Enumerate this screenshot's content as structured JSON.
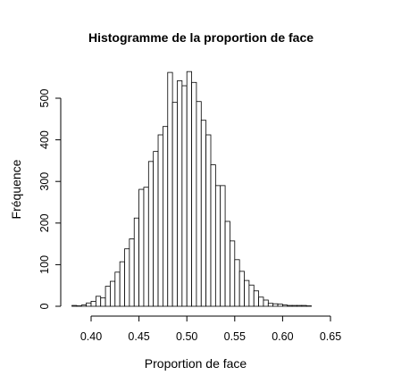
{
  "chart_data": {
    "type": "bar",
    "title": "Histogramme de la proportion de face",
    "xlabel": "Proportion de face",
    "ylabel": "Fréquence",
    "xlim": [
      0.38,
      0.67
    ],
    "ylim": [
      0,
      600
    ],
    "x_ticks": [
      0.4,
      0.45,
      0.5,
      0.55,
      0.6,
      0.65
    ],
    "x_tick_labels": [
      "0.40",
      "0.45",
      "0.50",
      "0.55",
      "0.60",
      "0.65"
    ],
    "y_ticks": [
      0,
      100,
      200,
      300,
      400,
      500
    ],
    "y_tick_labels": [
      "0",
      "100",
      "200",
      "300",
      "400",
      "500"
    ],
    "bin_width": 0.005,
    "bins_start": [
      0.38,
      0.385,
      0.39,
      0.395,
      0.4,
      0.405,
      0.41,
      0.415,
      0.42,
      0.425,
      0.43,
      0.435,
      0.44,
      0.445,
      0.45,
      0.455,
      0.46,
      0.465,
      0.47,
      0.475,
      0.48,
      0.485,
      0.49,
      0.495,
      0.5,
      0.505,
      0.51,
      0.515,
      0.52,
      0.525,
      0.53,
      0.535,
      0.54,
      0.545,
      0.55,
      0.555,
      0.56,
      0.565,
      0.57,
      0.575,
      0.58,
      0.585,
      0.59,
      0.595,
      0.6,
      0.605,
      0.61,
      0.615,
      0.62,
      0.625
    ],
    "counts": [
      2,
      1,
      3,
      8,
      12,
      24,
      20,
      48,
      60,
      82,
      107,
      138,
      162,
      212,
      281,
      286,
      348,
      372,
      412,
      432,
      562,
      490,
      542,
      530,
      564,
      538,
      492,
      447,
      412,
      340,
      290,
      290,
      204,
      157,
      112,
      84,
      62,
      51,
      37,
      22,
      15,
      7,
      6,
      5,
      3,
      2,
      2,
      2,
      2,
      1
    ],
    "grid": false,
    "legend": "none"
  }
}
